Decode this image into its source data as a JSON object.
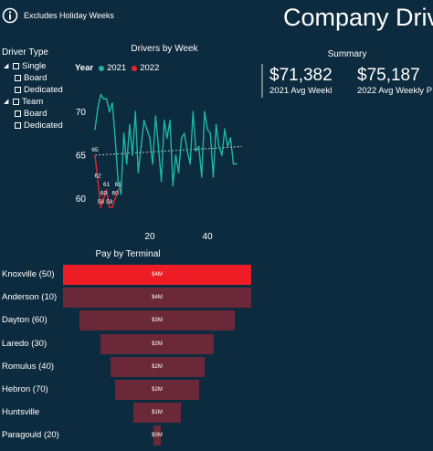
{
  "header": {
    "info_icon": "info-icon",
    "info_text": "Excludes Holiday Weeks",
    "title": "Company Drive"
  },
  "slicer": {
    "title": "Driver Type",
    "items": [
      {
        "label": "Single",
        "level": 1,
        "expander": "minus"
      },
      {
        "label": "Board",
        "level": 2
      },
      {
        "label": "Dedicated",
        "level": 2
      },
      {
        "label": "Team",
        "level": 1,
        "expander": "minus"
      },
      {
        "label": "Board",
        "level": 2
      },
      {
        "label": "Dedicated",
        "level": 2
      }
    ]
  },
  "colors": {
    "background": "#0d2b3e",
    "series_2021": "#1fb5a5",
    "series_2022": "#e8242f",
    "funnel_top": "#ee1c25",
    "funnel_bar": "#6b2838"
  },
  "summary": {
    "title": "Summary",
    "kpis": [
      {
        "value": "$71,382",
        "label": "2021 Avg Weekl"
      },
      {
        "value": "$75,187",
        "label": "2022 Avg Weekly P"
      }
    ]
  },
  "chart_data": [
    {
      "type": "line",
      "title": "Drivers by Week",
      "legend_title": "Year",
      "legend_placement": "top-left",
      "xlim": [
        1,
        52
      ],
      "ylim": [
        57,
        73
      ],
      "y_ticks": [
        60,
        65,
        70
      ],
      "x_ticks": [
        20,
        40
      ],
      "grid": false,
      "series": [
        {
          "name": "2021",
          "color": "#1fb5a5",
          "x": [
            1,
            2,
            3,
            4,
            5,
            6,
            7,
            8,
            9,
            10,
            11,
            12,
            13,
            14,
            15,
            16,
            17,
            18,
            19,
            20,
            21,
            22,
            23,
            24,
            25,
            26,
            27,
            28,
            29,
            30,
            31,
            32,
            33,
            34,
            35,
            36,
            37,
            38,
            39,
            40,
            41,
            42,
            43,
            44,
            45,
            46,
            47,
            48,
            49,
            50
          ],
          "y": [
            68,
            70.5,
            72,
            71.5,
            71.5,
            70,
            71,
            67,
            62,
            60.5,
            67.5,
            64,
            68.5,
            65,
            70,
            63,
            66,
            69,
            68,
            67,
            64,
            69.5,
            66,
            62,
            69,
            67,
            69,
            61.5,
            65,
            63,
            67,
            67.5,
            65.5,
            64,
            70,
            65.5,
            66,
            62.5,
            70,
            68,
            67.5,
            62.5,
            68.5,
            66,
            65,
            68,
            66,
            67,
            64,
            64
          ]
        },
        {
          "name": "2022",
          "color": "#e8242f",
          "x": [
            1,
            2,
            3,
            4,
            5,
            6,
            7,
            8,
            9
          ],
          "y": [
            65,
            62,
            59,
            60,
            61,
            59,
            59,
            60,
            61
          ],
          "data_labels": [
            "65",
            "62",
            "59",
            "60",
            "61",
            "59",
            "",
            "60",
            "61"
          ]
        }
      ],
      "trendline": {
        "series": "2021",
        "y_start": 65,
        "y_end": 66
      }
    },
    {
      "type": "bar",
      "orientation": "funnel",
      "title": "Pay by Terminal",
      "categories": [
        "Knoxville (50)",
        "Anderson (10)",
        "Dayton (60)",
        "Laredo (30)",
        "Romulus (40)",
        "Hebron (70)",
        "Huntsville",
        "Paragould (20)"
      ],
      "values": [
        4.0,
        4.0,
        3.3,
        2.4,
        2.0,
        1.8,
        1.0,
        0.15
      ],
      "value_labels": [
        "$4M",
        "$4M",
        "$3M",
        "$2M",
        "$2M",
        "$2M",
        "$1M",
        "$0M"
      ],
      "highlight": "Knoxville (50)"
    }
  ]
}
